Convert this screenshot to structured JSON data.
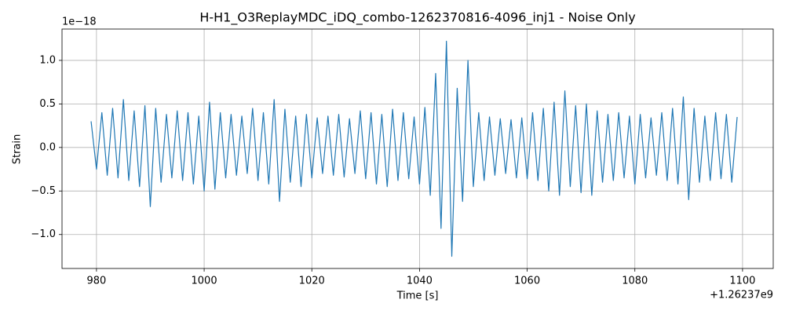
{
  "chart_data": {
    "type": "line",
    "title": "H-H1_O3ReplayMDC_iDQ_combo-1262370816-4096_inj1 - Noise Only",
    "xlabel": "Time [s]",
    "ylabel": "Strain",
    "x_offset_label": "+1.26237e9",
    "y_offset_label": "1e−18",
    "color": "#1f77b4",
    "grid": true,
    "xlim": [
      973.6,
      1105.7
    ],
    "ylim": [
      -1.39,
      1.36
    ],
    "xticks": [
      980,
      1000,
      1020,
      1040,
      1060,
      1080,
      1100
    ],
    "yticks": [
      {
        "value": -1.0,
        "label": "−1.0"
      },
      {
        "value": -0.5,
        "label": "−0.5"
      },
      {
        "value": 0.0,
        "label": "0.0"
      },
      {
        "value": 0.5,
        "label": "0.5"
      },
      {
        "value": 1.0,
        "label": "1.0"
      }
    ],
    "x": [
      979,
      980,
      981,
      982,
      983,
      984,
      985,
      986,
      987,
      988,
      989,
      990,
      991,
      992,
      993,
      994,
      995,
      996,
      997,
      998,
      999,
      1000,
      1001,
      1002,
      1003,
      1004,
      1005,
      1006,
      1007,
      1008,
      1009,
      1010,
      1011,
      1012,
      1013,
      1014,
      1015,
      1016,
      1017,
      1018,
      1019,
      1020,
      1021,
      1022,
      1023,
      1024,
      1025,
      1026,
      1027,
      1028,
      1029,
      1030,
      1031,
      1032,
      1033,
      1034,
      1035,
      1036,
      1037,
      1038,
      1039,
      1040,
      1041,
      1042,
      1043,
      1044,
      1045,
      1046,
      1047,
      1048,
      1049,
      1050,
      1051,
      1052,
      1053,
      1054,
      1055,
      1056,
      1057,
      1058,
      1059,
      1060,
      1061,
      1062,
      1063,
      1064,
      1065,
      1066,
      1067,
      1068,
      1069,
      1070,
      1071,
      1072,
      1073,
      1074,
      1075,
      1076,
      1077,
      1078,
      1079,
      1080,
      1081,
      1082,
      1083,
      1084,
      1085,
      1086,
      1087,
      1088,
      1089,
      1090,
      1091,
      1092,
      1093,
      1094,
      1095,
      1096,
      1097,
      1098,
      1099
    ],
    "values": [
      0.3,
      -0.25,
      0.4,
      -0.32,
      0.45,
      -0.35,
      0.55,
      -0.38,
      0.42,
      -0.45,
      0.48,
      -0.68,
      0.45,
      -0.4,
      0.38,
      -0.35,
      0.42,
      -0.38,
      0.4,
      -0.42,
      0.36,
      -0.5,
      0.52,
      -0.48,
      0.4,
      -0.35,
      0.38,
      -0.32,
      0.36,
      -0.3,
      0.45,
      -0.38,
      0.4,
      -0.42,
      0.55,
      -0.62,
      0.44,
      -0.4,
      0.36,
      -0.45,
      0.38,
      -0.35,
      0.34,
      -0.3,
      0.36,
      -0.32,
      0.38,
      -0.34,
      0.33,
      -0.3,
      0.42,
      -0.36,
      0.4,
      -0.42,
      0.38,
      -0.45,
      0.44,
      -0.38,
      0.4,
      -0.36,
      0.35,
      -0.42,
      0.46,
      -0.55,
      0.85,
      -0.93,
      1.22,
      -1.25,
      0.68,
      -0.62,
      1.0,
      -0.45,
      0.4,
      -0.38,
      0.35,
      -0.32,
      0.33,
      -0.3,
      0.32,
      -0.35,
      0.34,
      -0.36,
      0.4,
      -0.38,
      0.45,
      -0.5,
      0.52,
      -0.55,
      0.65,
      -0.45,
      0.48,
      -0.52,
      0.5,
      -0.55,
      0.42,
      -0.4,
      0.38,
      -0.38,
      0.4,
      -0.35,
      0.36,
      -0.42,
      0.38,
      -0.35,
      0.34,
      -0.32,
      0.4,
      -0.38,
      0.45,
      -0.42,
      0.58,
      -0.6,
      0.45,
      -0.4,
      0.36,
      -0.38,
      0.4,
      -0.36,
      0.38,
      -0.4,
      0.35
    ]
  }
}
